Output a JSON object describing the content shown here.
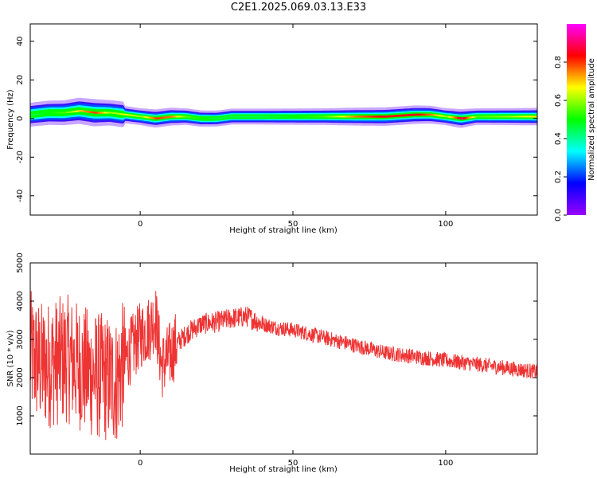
{
  "title": "C2E1.2025.069.03.13.E33",
  "chart_data": [
    {
      "type": "heatmap",
      "xlabel": "Height of straight line (km)",
      "ylabel": "Frequency (Hz)",
      "xlim": [
        -36,
        130
      ],
      "ylim": [
        -50,
        49
      ],
      "xticks": [
        0,
        50,
        100
      ],
      "yticks": [
        -40,
        -20,
        0,
        20,
        40
      ],
      "grid": false,
      "colorbar": {
        "label": "Normalized spectral amplitude",
        "range": [
          0.0,
          1.0
        ],
        "ticks": [
          0.0,
          0.2,
          0.4,
          0.6,
          0.8
        ],
        "colormap": [
          "#9900ff",
          "#0000ff",
          "#00ffff",
          "#00ff00",
          "#ffff00",
          "#ff0000",
          "#ff00ff"
        ]
      },
      "ridge": {
        "x": [
          -36,
          -30,
          -25,
          -20,
          -15,
          -10,
          -5,
          0,
          5,
          10,
          15,
          20,
          25,
          30,
          40,
          50,
          60,
          70,
          80,
          90,
          95,
          100,
          105,
          110,
          120,
          130
        ],
        "center_hz": [
          2,
          3,
          3,
          4,
          3,
          3,
          2,
          1,
          0,
          1,
          1,
          0,
          0,
          1,
          1,
          1,
          1,
          1,
          1,
          2,
          2,
          1,
          0,
          1,
          1,
          1
        ],
        "amplitude": [
          0.45,
          0.5,
          0.55,
          0.7,
          0.8,
          0.6,
          0.65,
          0.6,
          0.8,
          0.75,
          0.55,
          0.5,
          0.45,
          0.45,
          0.45,
          0.5,
          0.55,
          0.75,
          0.85,
          0.85,
          0.75,
          0.6,
          0.9,
          0.55,
          0.6,
          0.7
        ]
      }
    },
    {
      "type": "line",
      "xlabel": "Height of straight line (km)",
      "ylabel": "SNR (10 * v/v)",
      "xlim": [
        -36,
        130
      ],
      "ylim": [
        0,
        5000
      ],
      "xticks": [
        0,
        50,
        100
      ],
      "yticks": [
        1000,
        2000,
        3000,
        4000,
        5000
      ],
      "grid": false,
      "color": "#ee3333",
      "series": [
        {
          "x": [
            -36,
            -32,
            -28,
            -24,
            -20,
            -16,
            -12,
            -8,
            -4,
            0,
            3,
            5,
            7,
            9,
            12,
            16,
            20,
            25,
            30,
            35,
            40,
            45,
            50,
            55,
            60,
            65,
            70,
            75,
            80,
            85,
            90,
            95,
            100,
            105,
            110,
            115,
            120,
            125,
            130
          ],
          "y": [
            2600,
            2300,
            2400,
            2500,
            2300,
            2100,
            2000,
            1900,
            2600,
            3100,
            3300,
            3600,
            2300,
            2500,
            2900,
            3200,
            3400,
            3450,
            3550,
            3600,
            3400,
            3300,
            3250,
            3150,
            3050,
            2950,
            2850,
            2750,
            2650,
            2600,
            2550,
            2500,
            2450,
            2400,
            2350,
            2300,
            2250,
            2200,
            2150
          ]
        }
      ]
    }
  ]
}
